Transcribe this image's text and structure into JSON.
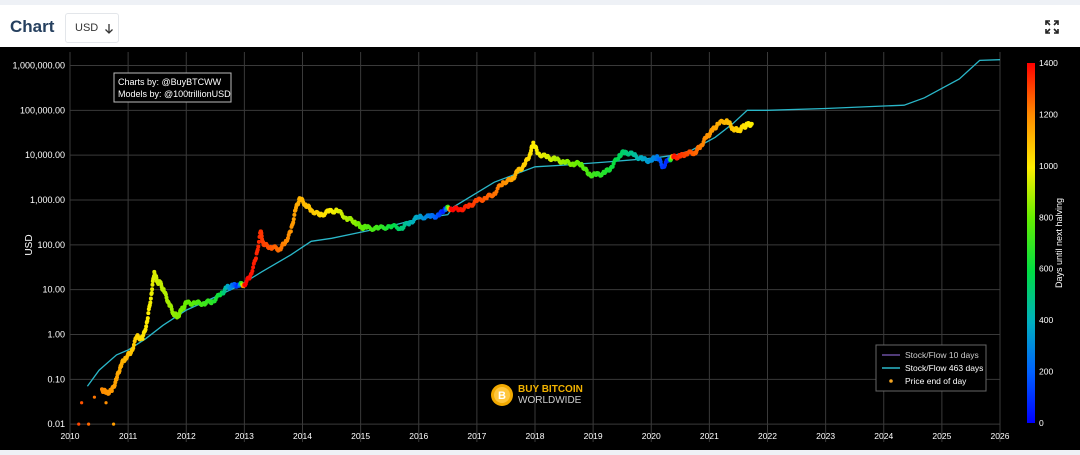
{
  "header": {
    "title": "Chart",
    "currency_value": "USD",
    "dropdown_icon": "arrow-down-icon",
    "expand_icon": "expand-icon"
  },
  "watermark": {
    "line1": "BUY BITCOIN",
    "line2": "WORLDWIDE",
    "logo_letter": "B"
  },
  "colors": {
    "background": "#000000",
    "model_463": "#2ab7c9",
    "model_10": "#6b4fa0",
    "price_dot": "#f5a623",
    "header_title": "#26405f"
  },
  "chart_data": {
    "type": "scatter",
    "title": "",
    "annotation": [
      "Charts by: @BuyBTCWW",
      "Models by: @100trillionUSD"
    ],
    "ylabel": "USD",
    "xlabel": "",
    "yscale": "log",
    "xlim": [
      2010,
      2026
    ],
    "ylim": [
      0.004,
      2000000
    ],
    "x_ticks": [
      "2010",
      "2011",
      "2012",
      "2013",
      "2014",
      "2015",
      "2016",
      "2017",
      "2018",
      "2019",
      "2020",
      "2021",
      "2022",
      "2023",
      "2024",
      "2025",
      "2026"
    ],
    "y_ticks": [
      {
        "value": 0.01,
        "label": "0.01"
      },
      {
        "value": 0.1,
        "label": "0.10"
      },
      {
        "value": 1,
        "label": "1.00"
      },
      {
        "value": 10,
        "label": "10.00"
      },
      {
        "value": 100,
        "label": "100.00"
      },
      {
        "value": 1000,
        "label": "1,000.00"
      },
      {
        "value": 10000,
        "label": "10,000.00"
      },
      {
        "value": 100000,
        "label": "100,000.00"
      },
      {
        "value": 1000000,
        "label": "1,000,000.00"
      }
    ],
    "grid": true,
    "legend_position": "bottom-right",
    "legend": [
      "Stock/Flow 10 days",
      "Stock/Flow 463 days",
      "Price end of day"
    ],
    "colorbar": {
      "label": "Days until next halving",
      "min": 0,
      "max": 1400,
      "ticks": [
        0,
        200,
        400,
        600,
        800,
        1000,
        1200,
        1400
      ]
    },
    "series": [
      {
        "name": "Stock/Flow 463 days",
        "x": [
          2010.3,
          2010.5,
          2010.8,
          2011.0,
          2011.3,
          2011.6,
          2012.0,
          2012.4,
          2012.9,
          2013.3,
          2013.8,
          2014.15,
          2014.5,
          2015.0,
          2015.5,
          2016.0,
          2016.5,
          2016.6,
          2017.3,
          2018.0,
          2018.5,
          2019.2,
          2020.0,
          2020.4,
          2020.7,
          2021.1,
          2021.4,
          2021.65,
          2022.0,
          2023.0,
          2024.0,
          2024.35,
          2024.7,
          2025.3,
          2025.65,
          2026.0
        ],
        "y": [
          0.07,
          0.16,
          0.35,
          0.45,
          0.8,
          1.6,
          3.5,
          6,
          12,
          25,
          60,
          120,
          140,
          190,
          260,
          380,
          470,
          700,
          2500,
          5500,
          6000,
          7000,
          8500,
          10000,
          13000,
          25000,
          50000,
          100000,
          100000,
          110000,
          125000,
          130000,
          190000,
          500000,
          1300000,
          1350000
        ]
      },
      {
        "name": "Price end of day",
        "points": [
          [
            2010.15,
            0.01,
            1300
          ],
          [
            2010.2,
            0.03,
            1280
          ],
          [
            2010.32,
            0.01,
            1250
          ],
          [
            2010.42,
            0.04,
            1230
          ],
          [
            2010.62,
            0.03,
            1190
          ],
          [
            2010.75,
            0.01,
            1160
          ],
          [
            2010.55,
            0.06,
            1200
          ],
          [
            2010.62,
            0.05,
            1185
          ],
          [
            2010.72,
            0.055,
            1170
          ],
          [
            2010.8,
            0.1,
            1150
          ],
          [
            2010.87,
            0.2,
            1130
          ],
          [
            2010.95,
            0.3,
            1110
          ],
          [
            2011.05,
            0.4,
            1080
          ],
          [
            2011.15,
            0.9,
            1050
          ],
          [
            2011.25,
            0.8,
            1020
          ],
          [
            2011.33,
            2,
            1000
          ],
          [
            2011.4,
            8,
            970
          ],
          [
            2011.45,
            25,
            950
          ],
          [
            2011.5,
            15,
            935
          ],
          [
            2011.55,
            14,
            920
          ],
          [
            2011.62,
            9,
            900
          ],
          [
            2011.7,
            5,
            880
          ],
          [
            2011.78,
            3,
            860
          ],
          [
            2011.85,
            2.5,
            840
          ],
          [
            2011.92,
            3.5,
            820
          ],
          [
            2012.0,
            5,
            800
          ],
          [
            2012.15,
            5,
            760
          ],
          [
            2012.3,
            5,
            720
          ],
          [
            2012.45,
            5.5,
            680
          ],
          [
            2012.6,
            8,
            600
          ],
          [
            2012.7,
            11,
            400
          ],
          [
            2012.8,
            12,
            250
          ],
          [
            2012.9,
            13,
            60
          ],
          [
            2013.0,
            13,
            1400
          ],
          [
            2013.1,
            20,
            1380
          ],
          [
            2013.2,
            50,
            1350
          ],
          [
            2013.28,
            200,
            1330
          ],
          [
            2013.33,
            100,
            1310
          ],
          [
            2013.45,
            90,
            1280
          ],
          [
            2013.6,
            80,
            1240
          ],
          [
            2013.7,
            110,
            1210
          ],
          [
            2013.8,
            200,
            1180
          ],
          [
            2013.88,
            600,
            1150
          ],
          [
            2013.95,
            1100,
            1120
          ],
          [
            2014.05,
            800,
            1100
          ],
          [
            2014.15,
            600,
            1080
          ],
          [
            2014.3,
            450,
            1040
          ],
          [
            2014.45,
            550,
            1000
          ],
          [
            2014.6,
            580,
            960
          ],
          [
            2014.75,
            400,
            900
          ],
          [
            2014.9,
            330,
            850
          ],
          [
            2015.0,
            250,
            800
          ],
          [
            2015.1,
            240,
            760
          ],
          [
            2015.3,
            230,
            720
          ],
          [
            2015.5,
            260,
            620
          ],
          [
            2015.7,
            240,
            520
          ],
          [
            2015.85,
            320,
            420
          ],
          [
            2016.0,
            420,
            360
          ],
          [
            2016.2,
            420,
            260
          ],
          [
            2016.35,
            450,
            150
          ],
          [
            2016.45,
            650,
            40
          ],
          [
            2016.55,
            650,
            1400
          ],
          [
            2016.7,
            610,
            1380
          ],
          [
            2016.85,
            700,
            1340
          ],
          [
            2017.0,
            950,
            1300
          ],
          [
            2017.15,
            1100,
            1270
          ],
          [
            2017.3,
            1400,
            1240
          ],
          [
            2017.45,
            2500,
            1200
          ],
          [
            2017.6,
            2800,
            1150
          ],
          [
            2017.7,
            4300,
            1100
          ],
          [
            2017.82,
            6000,
            1060
          ],
          [
            2017.92,
            11000,
            1020
          ],
          [
            2017.97,
            19000,
            1000
          ],
          [
            2018.05,
            11000,
            980
          ],
          [
            2018.2,
            9000,
            950
          ],
          [
            2018.35,
            8000,
            900
          ],
          [
            2018.5,
            7000,
            860
          ],
          [
            2018.65,
            6500,
            820
          ],
          [
            2018.8,
            6400,
            780
          ],
          [
            2018.92,
            3700,
            740
          ],
          [
            2019.05,
            3600,
            700
          ],
          [
            2019.2,
            4000,
            660
          ],
          [
            2019.32,
            5500,
            620
          ],
          [
            2019.45,
            10000,
            560
          ],
          [
            2019.55,
            12000,
            520
          ],
          [
            2019.7,
            10000,
            460
          ],
          [
            2019.85,
            8000,
            380
          ],
          [
            2020.0,
            7500,
            320
          ],
          [
            2020.1,
            9500,
            260
          ],
          [
            2020.2,
            5500,
            120
          ],
          [
            2020.3,
            8000,
            60
          ],
          [
            2020.38,
            9000,
            1380
          ],
          [
            2020.5,
            9300,
            1330
          ],
          [
            2020.6,
            11000,
            1300
          ],
          [
            2020.75,
            11500,
            1260
          ],
          [
            2020.85,
            16000,
            1220
          ],
          [
            2020.95,
            25000,
            1190
          ],
          [
            2021.05,
            35000,
            1160
          ],
          [
            2021.15,
            50000,
            1130
          ],
          [
            2021.3,
            60000,
            1100
          ],
          [
            2021.4,
            40000,
            1080
          ],
          [
            2021.5,
            35000,
            1050
          ],
          [
            2021.58,
            42000,
            1030
          ],
          [
            2021.65,
            47000,
            1010
          ],
          [
            2021.73,
            50000,
            990
          ]
        ]
      }
    ]
  }
}
